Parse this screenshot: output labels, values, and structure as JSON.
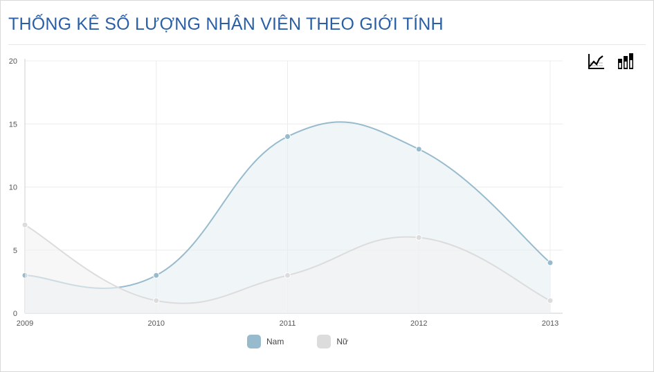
{
  "title": "THỐNG KÊ SỐ LƯỢNG NHÂN VIÊN THEO GIỚI TÍNH",
  "toolbar": {
    "line_icon": "line-chart-icon",
    "bar_icon": "bar-chart-icon"
  },
  "colors": {
    "title": "#2a5fa6",
    "nam_line": "#97bbcd",
    "nam_fill": "#e6eef2",
    "nu_line": "#dcdcdc",
    "nu_fill": "#f1f1f1",
    "grid": "#ececec",
    "axis": "#cfcfcf"
  },
  "chart_data": {
    "type": "area",
    "x": [
      "2009",
      "2010",
      "2011",
      "2012",
      "2013"
    ],
    "y_ticks": [
      "0",
      "5",
      "10",
      "15",
      "20"
    ],
    "ylim": [
      0,
      20
    ],
    "grid": true,
    "legend_position": "bottom",
    "series": [
      {
        "name": "Nam",
        "values": [
          3,
          3,
          14,
          13,
          4
        ],
        "color": "#97bbcd",
        "fill": "#e6eef2"
      },
      {
        "name": "Nữ",
        "values": [
          7,
          1,
          3,
          6,
          1
        ],
        "color": "#dcdcdc",
        "fill": "#f1f1f1"
      }
    ]
  }
}
